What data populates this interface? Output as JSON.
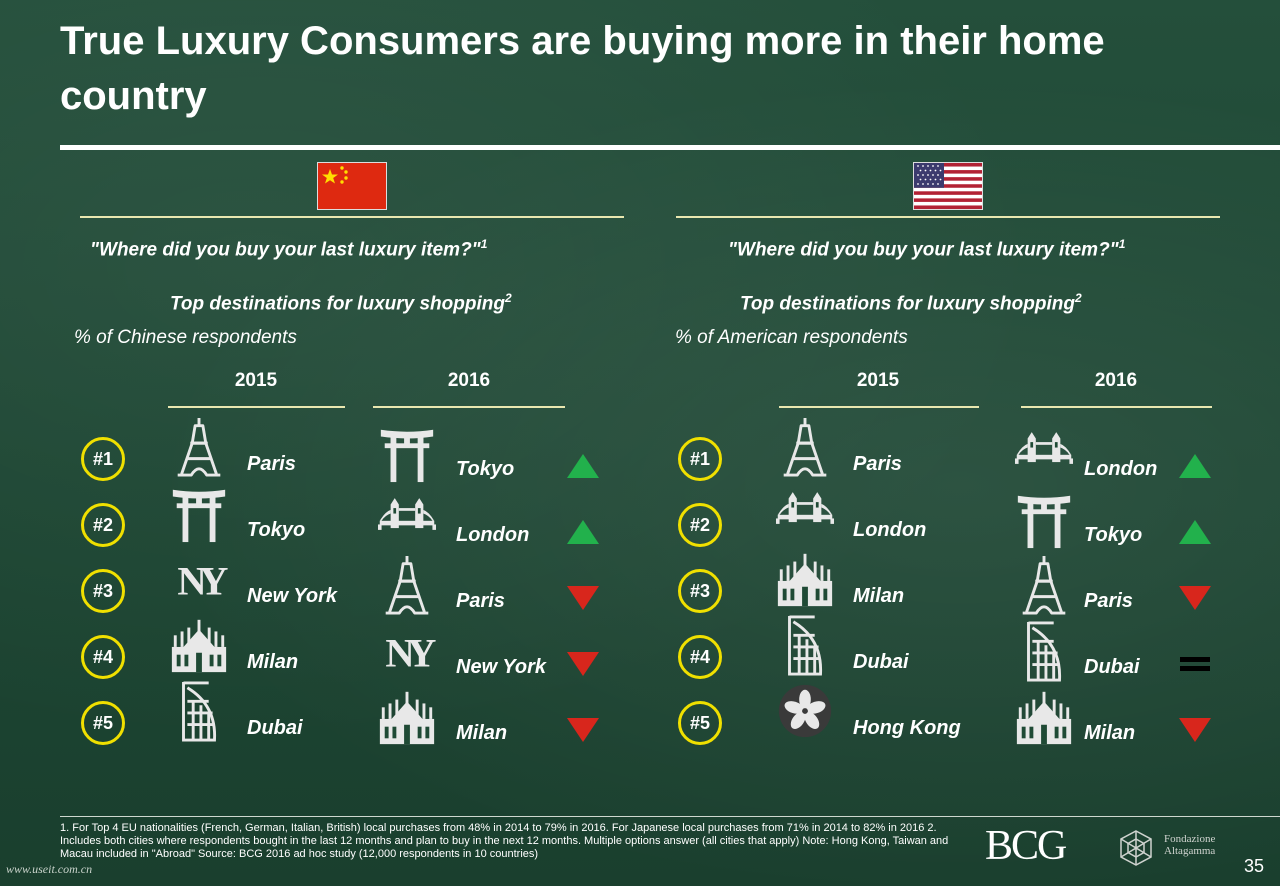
{
  "title": "True Luxury Consumers are buying more in their home country",
  "flags": {
    "china": "china-flag",
    "usa": "usa-flag"
  },
  "colors": {
    "background": "#1f4a35",
    "rank_ring": "#f0e000",
    "up": "#22b14c",
    "down": "#d8261c",
    "equal": "#000000",
    "rule": "#e9e7b0"
  },
  "panels": [
    {
      "question": "\"Where did you buy your last luxury item?\"",
      "question_sup": "1",
      "top_dest": "Top destinations for luxury shopping",
      "top_dest_sup": "2",
      "respondents": "% of Chinese respondents",
      "year_a": "2015",
      "year_b": "2016",
      "rows": [
        {
          "rank": "#1",
          "a_city": "Paris",
          "a_icon": "eiffel-tower-icon",
          "b_city": "Tokyo",
          "b_icon": "torii-gate-icon",
          "trend": "up"
        },
        {
          "rank": "#2",
          "a_city": "Tokyo",
          "a_icon": "torii-gate-icon",
          "b_city": "London",
          "b_icon": "tower-bridge-icon",
          "trend": "up"
        },
        {
          "rank": "#3",
          "a_city": "New York",
          "a_icon": "ny-logo-icon",
          "b_city": "Paris",
          "b_icon": "eiffel-tower-icon",
          "trend": "down"
        },
        {
          "rank": "#4",
          "a_city": "Milan",
          "a_icon": "milan-cathedral-icon",
          "b_city": "New York",
          "b_icon": "ny-logo-icon",
          "trend": "down"
        },
        {
          "rank": "#5",
          "a_city": "Dubai",
          "a_icon": "burj-al-arab-icon",
          "b_city": "Milan",
          "b_icon": "milan-cathedral-icon",
          "trend": "down"
        }
      ]
    },
    {
      "question": "\"Where did you buy your last luxury item?\"",
      "question_sup": "1",
      "top_dest": "Top destinations for luxury shopping",
      "top_dest_sup": "2",
      "respondents": "% of American respondents",
      "year_a": "2015",
      "year_b": "2016",
      "rows": [
        {
          "rank": "#1",
          "a_city": "Paris",
          "a_icon": "eiffel-tower-icon",
          "b_city": "London",
          "b_icon": "tower-bridge-icon",
          "trend": "up"
        },
        {
          "rank": "#2",
          "a_city": "London",
          "a_icon": "tower-bridge-icon",
          "b_city": "Tokyo",
          "b_icon": "torii-gate-icon",
          "trend": "up"
        },
        {
          "rank": "#3",
          "a_city": "Milan",
          "a_icon": "milan-cathedral-icon",
          "b_city": "Paris",
          "b_icon": "eiffel-tower-icon",
          "trend": "down"
        },
        {
          "rank": "#4",
          "a_city": "Dubai",
          "a_icon": "burj-al-arab-icon",
          "b_city": "Dubai",
          "b_icon": "burj-al-arab-icon",
          "trend": "equal"
        },
        {
          "rank": "#5",
          "a_city": "Hong Kong",
          "a_icon": "hong-kong-flower-icon",
          "b_city": "Milan",
          "b_icon": "milan-cathedral-icon",
          "trend": "down"
        }
      ]
    }
  ],
  "footnote": "1. For Top 4 EU nationalities (French, German, Italian, British) local purchases from 48% in 2014 to 79% in 2016. For Japanese local purchases from 71% in 2014 to 82% in 2016     2. Includes both cities where respondents bought in the last 12 months and plan to buy in the next 12 months. Multiple options answer (all cities that apply)  Note: Hong Kong, Taiwan and Macau included in \"Abroad\" Source: BCG 2016 ad hoc study (12,000 respondents in 10 countries)",
  "bcg_logo": "BCG",
  "fondazione_lines": [
    "Fondazione",
    "Altagamma"
  ],
  "watermark": "www.useit.com.cn",
  "page_number": "35"
}
